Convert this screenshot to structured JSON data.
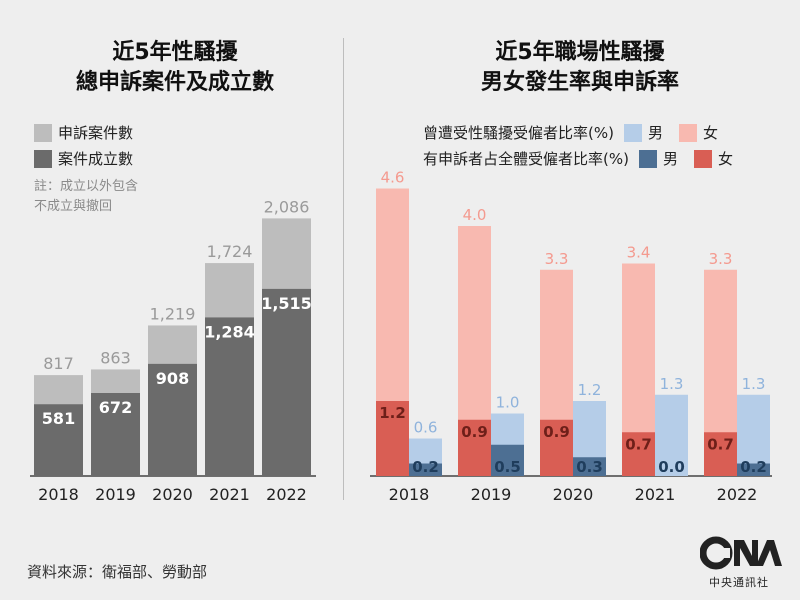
{
  "chart_data": [
    {
      "type": "bar",
      "title": "近5年性騷擾總申訴案件及成立數",
      "title_lines": [
        "近5年性騷擾",
        "總申訴案件及成立數"
      ],
      "categories": [
        "2018",
        "2019",
        "2020",
        "2021",
        "2022"
      ],
      "series": [
        {
          "name": "申訴案件數",
          "values": [
            817,
            863,
            1219,
            1724,
            2086
          ],
          "labels": [
            "817",
            "863",
            "1,219",
            "1,724",
            "2,086"
          ],
          "color": "#bdbdbd"
        },
        {
          "name": "案件成立數",
          "values": [
            581,
            672,
            908,
            1284,
            1515
          ],
          "labels": [
            "581",
            "672",
            "908",
            "1,284",
            "1,515"
          ],
          "color": "#6b6b6b"
        }
      ],
      "note_lines": [
        "註：成立以外包含",
        "不成立與撤回"
      ],
      "ylim": [
        0,
        2400
      ]
    },
    {
      "type": "bar",
      "title": "近5年職場性騷擾男女發生率與申訴率",
      "title_lines": [
        "近5年職場性騷擾",
        "男女發生率與申訴率"
      ],
      "categories": [
        "2018",
        "2019",
        "2020",
        "2021",
        "2022"
      ],
      "legend": {
        "row1_label": "曾遭受性騷擾受僱者比率(%)",
        "row2_label": "有申訴者占全體受僱者比率(%)",
        "male": "男",
        "female": "女"
      },
      "series": [
        {
          "name": "女 曾遭受性騷擾受僱者比率(%)",
          "values": [
            4.6,
            4.0,
            3.3,
            3.4,
            3.3
          ],
          "color": "#f8b9b0"
        },
        {
          "name": "女 有申訴者占全體受僱者比率(%)",
          "values": [
            1.2,
            0.9,
            0.9,
            0.7,
            0.7
          ],
          "color": "#d95e54"
        },
        {
          "name": "男 曾遭受性騷擾受僱者比率(%)",
          "values": [
            0.6,
            1.0,
            1.2,
            1.3,
            1.3
          ],
          "color": "#b5cde8"
        },
        {
          "name": "男 有申訴者占全體受僱者比率(%)",
          "values": [
            0.2,
            0.5,
            0.3,
            0.0,
            0.2
          ],
          "color": "#4d6f93"
        }
      ],
      "ylim": [
        0,
        5.4
      ]
    }
  ],
  "source": "資料來源：衛福部、勞動部",
  "logo": {
    "mark": "CNA",
    "org": "中央通訊社"
  }
}
